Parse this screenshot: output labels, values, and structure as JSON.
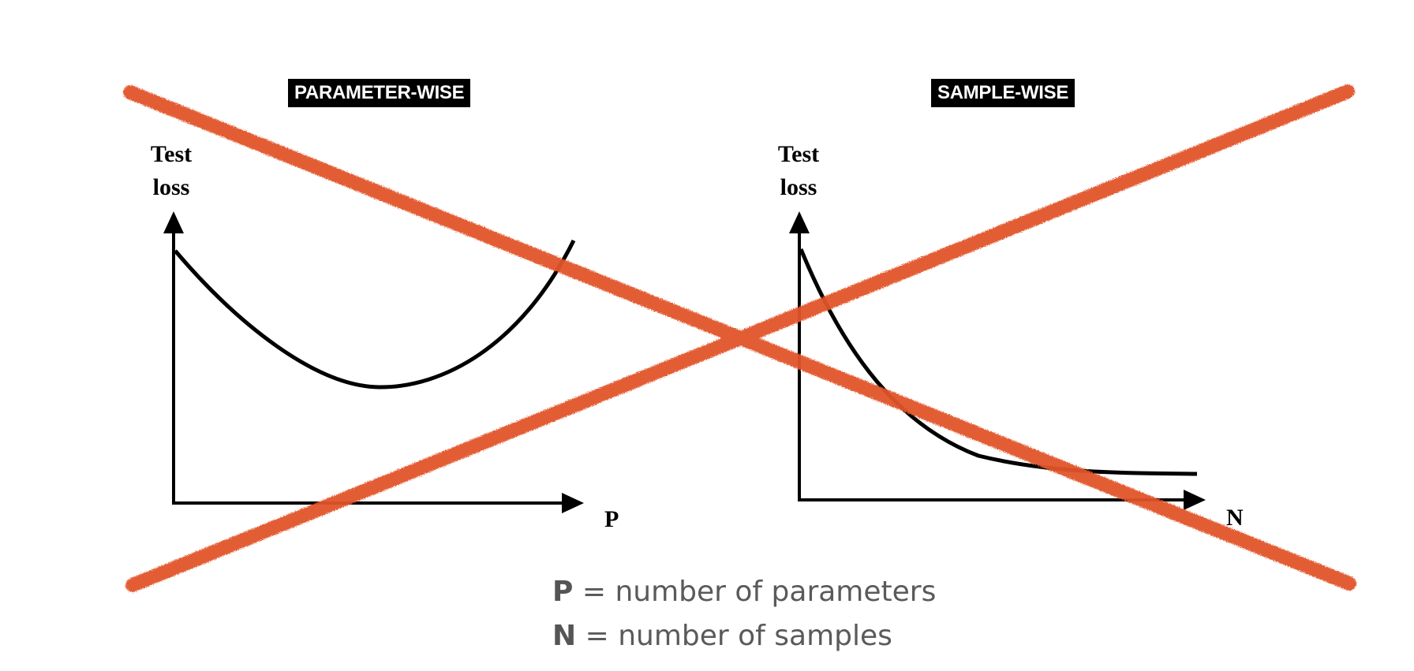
{
  "panels": {
    "left": {
      "title": "PARAMETER-WISE",
      "y_axis_label_line1": "Test",
      "y_axis_label_line2": "loss",
      "x_axis_label": "P"
    },
    "right": {
      "title": "SAMPLE-WISE",
      "y_axis_label_line1": "Test",
      "y_axis_label_line2": "loss",
      "x_axis_label": "N"
    }
  },
  "legend": {
    "p_symbol": "P",
    "p_text": " = number of parameters",
    "n_symbol": "N",
    "n_text": " = number of samples"
  },
  "colors": {
    "curve": "#000000",
    "cross_mark": "#e2542b",
    "legend_text": "#5a5a5a"
  },
  "overlay": {
    "type": "cross-out",
    "description_icon": "x-mark-icon"
  }
}
